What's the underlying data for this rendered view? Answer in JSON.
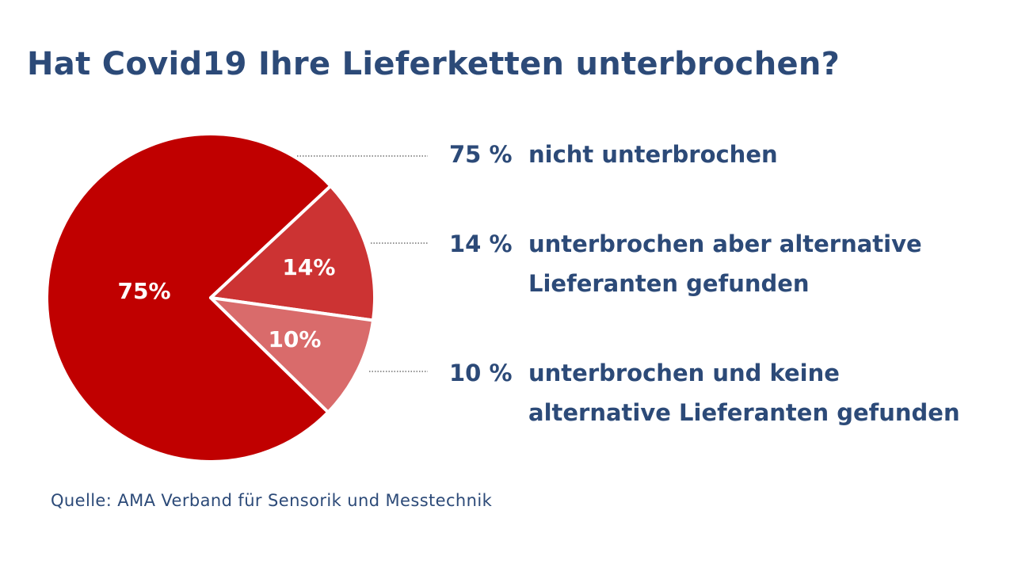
{
  "chart_data": {
    "type": "pie",
    "title": "Hat Covid19 Ihre Lieferketten unterbrochen?",
    "slices": [
      {
        "label": "nicht unterbrochen",
        "value": 75,
        "slice_label": "75%",
        "legend_value": "75 %",
        "color": "#c00000"
      },
      {
        "label": "unterbrochen aber alternative\nLieferanten gefunden",
        "value": 14,
        "slice_label": "14%",
        "legend_value": "14 %",
        "color": "#cc3333"
      },
      {
        "label": "unterbrochen und keine\nalternative Lieferanten gefunden",
        "value": 10,
        "slice_label": "10%",
        "legend_value": "10 %",
        "color": "#d96b6b"
      }
    ]
  },
  "source": "Quelle: AMA Verband für Sensorik und Messtechnik",
  "colors": {
    "text": "#2c4a78",
    "leader_line": "#555555",
    "separator": "#ffffff"
  }
}
